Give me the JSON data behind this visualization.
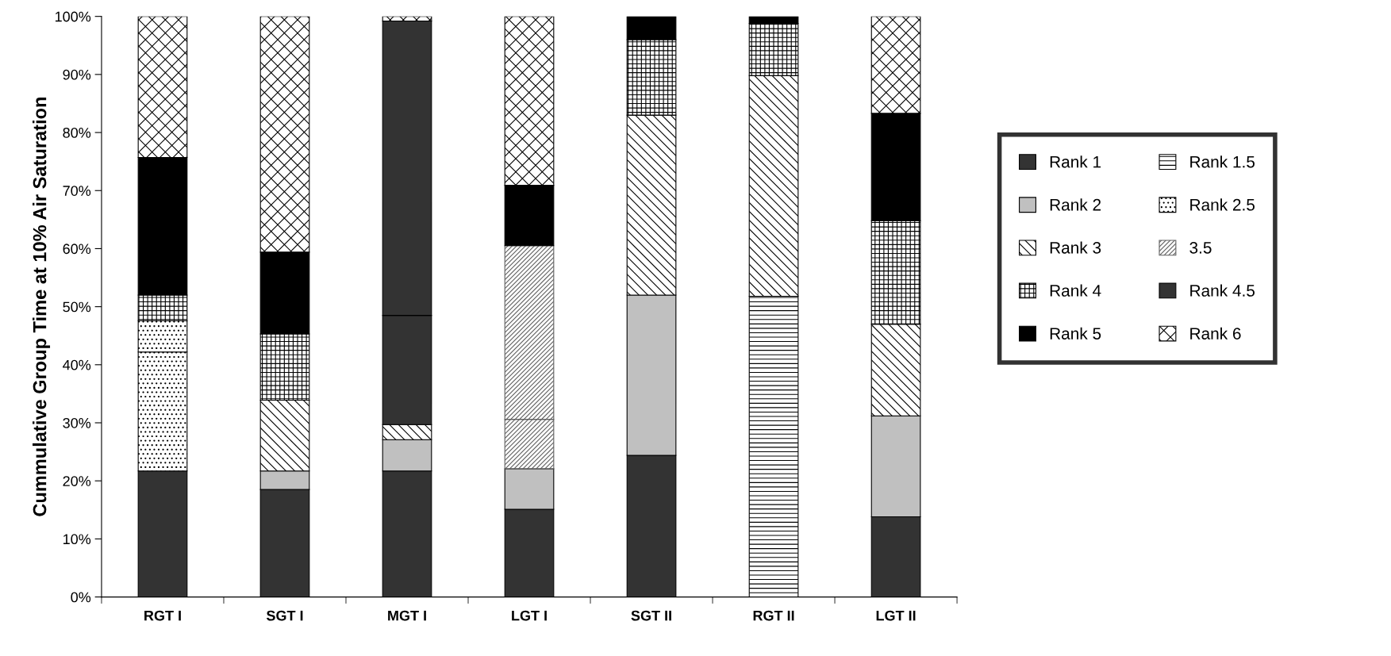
{
  "chart_data": {
    "type": "bar",
    "stacked": true,
    "ylabel": "Cummulative Group Time at 10% Air Saturation",
    "categories": [
      "RGT I",
      "SGT I",
      "MGT I",
      "LGT I",
      "SGT II",
      "RGT II",
      "LGT II"
    ],
    "ylim": [
      0,
      100
    ],
    "yticks": [
      {
        "value": 0,
        "label": "0%"
      },
      {
        "value": 10,
        "label": "10%"
      },
      {
        "value": 20,
        "label": "20%"
      },
      {
        "value": 30,
        "label": "30%"
      },
      {
        "value": 40,
        "label": "40%"
      },
      {
        "value": 50,
        "label": "50%"
      },
      {
        "value": 60,
        "label": "60%"
      },
      {
        "value": 70,
        "label": "70%"
      },
      {
        "value": 80,
        "label": "80%"
      },
      {
        "value": 90,
        "label": "90%"
      },
      {
        "value": 100,
        "label": "100%"
      }
    ],
    "grid": false,
    "legend": "right",
    "series": [
      {
        "name": "Rank 1",
        "color": "#333333",
        "values": [
          21.7,
          18.5,
          21.7,
          15.1,
          24.4,
          null,
          13.8
        ]
      },
      {
        "name": "Rank 1.5",
        "color": "#000000",
        "values": [
          null,
          null,
          null,
          null,
          null,
          51.8,
          null
        ]
      },
      {
        "name": "Rank 2",
        "color": "#c0c0c0",
        "values": [
          null,
          3.2,
          5.4,
          7.0,
          27.6,
          null,
          17.4
        ]
      },
      {
        "name": "Rank 2.5",
        "color": "#000000",
        "values": [
          20.5,
          null,
          null,
          null,
          null,
          null,
          null
        ]
      },
      {
        "color": "#000000",
        "values": [
          5.4,
          null,
          null,
          null,
          null,
          null,
          null
        ]
      },
      {
        "name": "Rank 3",
        "color": "#000000",
        "values": [
          null,
          12.2,
          2.6,
          null,
          31.0,
          38.0,
          15.8
        ]
      },
      {
        "name": "3.5",
        "color": "#606060",
        "values": [
          null,
          null,
          null,
          8.5,
          null,
          null,
          null
        ]
      },
      {
        "color": "#606060",
        "values": [
          null,
          null,
          null,
          29.9,
          null,
          null,
          null
        ]
      },
      {
        "name": "Rank 4",
        "color": "#000000",
        "values": [
          4.4,
          11.4,
          null,
          null,
          13.0,
          9.0,
          17.8
        ]
      },
      {
        "name": "Rank 4.5",
        "color": "#333333",
        "values": [
          null,
          null,
          18.8,
          null,
          null,
          null,
          null
        ]
      },
      {
        "color": "#333333",
        "values": [
          null,
          null,
          50.7,
          null,
          null,
          null,
          null
        ]
      },
      {
        "name": "Rank 5",
        "color": "#000000",
        "values": [
          23.7,
          14.1,
          null,
          10.4,
          4.0,
          1.2,
          18.5
        ]
      },
      {
        "name": "Rank 6",
        "color": "#000000",
        "values": [
          24.3,
          40.6,
          0.8,
          29.1,
          null,
          null,
          16.7
        ]
      }
    ]
  }
}
